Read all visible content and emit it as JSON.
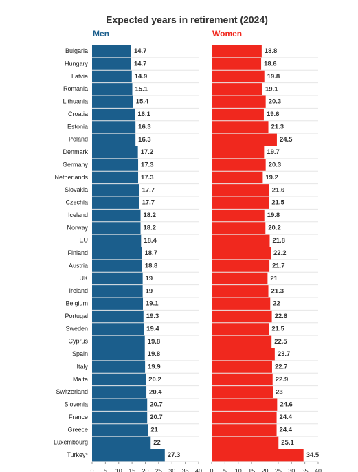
{
  "chart_data": {
    "type": "bar",
    "title": "Expected years in retirement (2024)",
    "categories": [
      "Bulgaria",
      "Hungary",
      "Latvia",
      "Romania",
      "Lithuania",
      "Croatia",
      "Estonia",
      "Poland",
      "Denmark",
      "Germany",
      "Netherlands",
      "Slovakia",
      "Czechia",
      "Iceland",
      "Norway",
      "EU",
      "Finland",
      "Austria",
      "UK",
      "Ireland",
      "Belgium",
      "Portugal",
      "Sweden",
      "Cyprus",
      "Spain",
      "Italy",
      "Malta",
      "Switzerland",
      "Slovenia",
      "France",
      "Greece",
      "Luxembourg",
      "Turkey*"
    ],
    "series": [
      {
        "name": "Men",
        "color": "#1b5e8c",
        "values": [
          14.7,
          14.7,
          14.9,
          15.1,
          15.4,
          16.1,
          16.3,
          16.3,
          17.2,
          17.3,
          17.3,
          17.7,
          17.7,
          18.2,
          18.2,
          18.4,
          18.7,
          18.8,
          19,
          19,
          19.1,
          19.3,
          19.4,
          19.8,
          19.8,
          19.9,
          20.2,
          20.4,
          20.7,
          20.7,
          21,
          22,
          27.3
        ]
      },
      {
        "name": "Women",
        "color": "#f0281e",
        "values": [
          18.8,
          18.6,
          19.8,
          19.1,
          20.3,
          19.6,
          21.3,
          24.5,
          19.7,
          20.3,
          19.2,
          21.6,
          21.5,
          19.8,
          20.2,
          21.8,
          22.2,
          21.7,
          21,
          21.3,
          22,
          22.6,
          21.5,
          22.5,
          23.7,
          22.7,
          22.9,
          23,
          24.6,
          24.4,
          24.4,
          25.1,
          34.5
        ]
      }
    ],
    "xlim": [
      0,
      40
    ],
    "xticks": [
      0,
      5,
      10,
      15,
      20,
      25,
      30,
      35,
      40
    ]
  }
}
